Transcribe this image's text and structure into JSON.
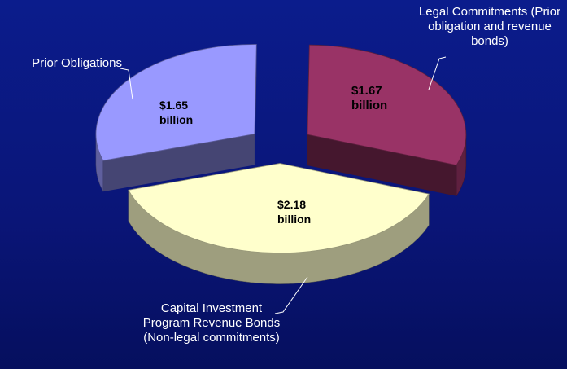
{
  "chart_data": {
    "type": "pie",
    "categories": [
      "Prior Obligations",
      "Legal Commitments (Prior obligation and revenue bonds)",
      "Capital Investment Program Revenue Bonds (Non-legal commitments)"
    ],
    "values": [
      1.65,
      1.67,
      2.18
    ],
    "value_labels": [
      "$1.65 billion",
      "$1.67 billion",
      "$2.18 billion"
    ],
    "colors": [
      "#9999ff",
      "#993366",
      "#ffffcc"
    ]
  }
}
